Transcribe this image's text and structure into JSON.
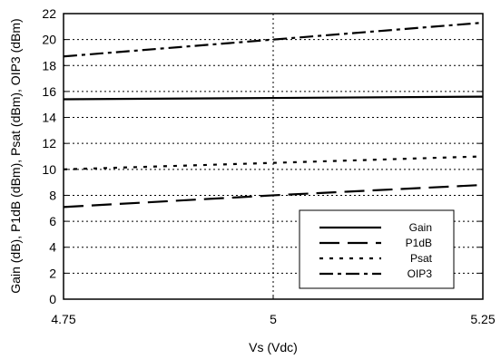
{
  "chart_data": {
    "type": "line",
    "xlabel": "Vs (Vdc)",
    "ylabel": "Gain (dB), P1dB (dBm), Psat (dBm), OIP3 (dBm)",
    "xlim": [
      4.75,
      5.25
    ],
    "ylim": [
      0,
      22
    ],
    "xticks": [
      4.75,
      5,
      5.25
    ],
    "xtick_labels": [
      "4.75",
      "5",
      "5.25"
    ],
    "yticks": [
      0,
      2,
      4,
      6,
      8,
      10,
      12,
      14,
      16,
      18,
      20,
      22
    ],
    "ytick_labels": [
      "0",
      "2",
      "4",
      "6",
      "8",
      "10",
      "12",
      "14",
      "16",
      "18",
      "20",
      "22"
    ],
    "grid": true,
    "legend_position": "bottom-right",
    "series": [
      {
        "name": "Gain",
        "style": "solid",
        "x": [
          4.75,
          5,
          5.25
        ],
        "values": [
          15.4,
          15.5,
          15.6
        ]
      },
      {
        "name": "P1dB",
        "style": "long-dash",
        "x": [
          4.75,
          5,
          5.25
        ],
        "values": [
          7.1,
          8.0,
          8.8
        ]
      },
      {
        "name": "Psat",
        "style": "dotted",
        "x": [
          4.75,
          5,
          5.25
        ],
        "values": [
          10.0,
          10.5,
          11.0
        ]
      },
      {
        "name": "OIP3",
        "style": "dash-dot",
        "x": [
          4.75,
          5,
          5.25
        ],
        "values": [
          18.7,
          20.0,
          21.3
        ]
      }
    ]
  }
}
